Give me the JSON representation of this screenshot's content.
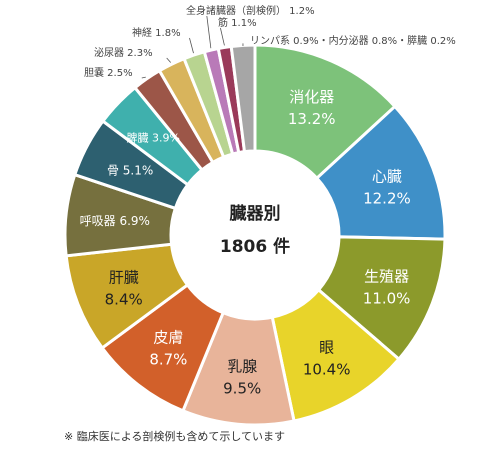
{
  "chart_data": {
    "type": "pie",
    "title": "臓器別",
    "total_label": "1806 件",
    "unit": "%",
    "slices": [
      {
        "label": "消化器",
        "value": 13.2,
        "value_text": "13.2%",
        "color": "#7dc27a"
      },
      {
        "label": "心臓",
        "value": 12.2,
        "value_text": "12.2%",
        "color": "#3f90c8"
      },
      {
        "label": "生殖器",
        "value": 11.0,
        "value_text": "11.0%",
        "color": "#8c9a2b"
      },
      {
        "label": "眼",
        "value": 10.4,
        "value_text": "10.4%",
        "color": "#e8d42a"
      },
      {
        "label": "乳腺",
        "value": 9.5,
        "value_text": "9.5%",
        "color": "#e8b49a"
      },
      {
        "label": "皮膚",
        "value": 8.7,
        "value_text": "8.7%",
        "color": "#d2602a"
      },
      {
        "label": "肝臓",
        "value": 8.4,
        "value_text": "8.4%",
        "color": "#c9a628"
      },
      {
        "label": "呼吸器",
        "value": 6.9,
        "value_text": "6.9%",
        "color": "#76703e"
      },
      {
        "label": "骨",
        "value": 5.1,
        "value_text": "5.1%",
        "color": "#2d6070"
      },
      {
        "label": "脾臓",
        "value": 3.9,
        "value_text": "3.9%",
        "color": "#3fb0ad"
      },
      {
        "label": "胆嚢",
        "value": 2.5,
        "value_text": "2.5%",
        "color": "#9c5648"
      },
      {
        "label": "泌尿器",
        "value": 2.3,
        "value_text": "2.3%",
        "color": "#d8b45c"
      },
      {
        "label": "神経",
        "value": 1.8,
        "value_text": "1.8%",
        "color": "#b8d490"
      },
      {
        "label": "全身諸臓器（剖検例）",
        "value": 1.2,
        "value_text": "1.2%",
        "color": "#b97ab8"
      },
      {
        "label": "筋",
        "value": 1.1,
        "value_text": "1.1%",
        "color": "#9a3a5a"
      },
      {
        "label": "リンパ系・内分泌器・膵臓",
        "value": 2.0,
        "color": "#a6a6a6"
      }
    ],
    "outside_labels": {
      "tail_label": "リンパ系 0.9%・内分泌器 0.8%・膵臓 0.2%"
    },
    "footnote": "※ 臨床医による剖検例も含めて示しています"
  }
}
